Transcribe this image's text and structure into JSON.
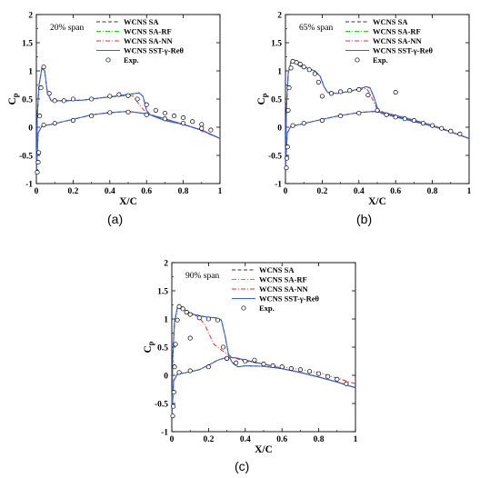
{
  "captions": [
    "(a)",
    "(b)",
    "(c)"
  ],
  "legend": {
    "entries": [
      {
        "label": "WCNS SA",
        "color": "#333333",
        "dash": "4,2.5"
      },
      {
        "label": "WCNS SA-RF",
        "color": "#2ecc2e",
        "dash": "5,2,1,2"
      },
      {
        "label": "WCNS SA-NN",
        "color": "#e03030",
        "dash": "5,2,1,2"
      },
      {
        "label": "WCNS SST-γ-Reθ",
        "color": "#3a5fe0",
        "dash": ""
      }
    ],
    "exp_label": "Exp."
  },
  "chart_data": [
    {
      "type": "line",
      "annotation": "20% span",
      "xlabel": "X/C",
      "ylabel": "Cp",
      "xlim": [
        0,
        1
      ],
      "ylim": [
        -1,
        2
      ],
      "xticks": [
        "0",
        "0.2",
        "0.4",
        "0.6",
        "0.8",
        "1"
      ],
      "yticks": [
        "-1",
        "-0.5",
        "0",
        "0.5",
        "1",
        "1.5",
        "2"
      ],
      "curves": {
        "upper": [
          [
            0,
            -0.8
          ],
          [
            0.005,
            0.2
          ],
          [
            0.015,
            0.75
          ],
          [
            0.03,
            1.05
          ],
          [
            0.045,
            1.0
          ],
          [
            0.06,
            0.62
          ],
          [
            0.08,
            0.47
          ],
          [
            0.15,
            0.47
          ],
          [
            0.25,
            0.48
          ],
          [
            0.35,
            0.52
          ],
          [
            0.45,
            0.56
          ],
          [
            0.52,
            0.59
          ],
          [
            0.56,
            0.61
          ],
          [
            0.58,
            0.55
          ],
          [
            0.6,
            0.3
          ],
          [
            0.62,
            0.22
          ],
          [
            0.7,
            0.12
          ],
          [
            0.8,
            0.05
          ],
          [
            0.9,
            -0.05
          ],
          [
            1.0,
            -0.2
          ]
        ],
        "lower": [
          [
            0,
            -0.8
          ],
          [
            0.01,
            -0.1
          ],
          [
            0.03,
            0.02
          ],
          [
            0.08,
            0.05
          ],
          [
            0.2,
            0.14
          ],
          [
            0.3,
            0.22
          ],
          [
            0.4,
            0.26
          ],
          [
            0.5,
            0.28
          ],
          [
            0.6,
            0.24
          ],
          [
            0.7,
            0.15
          ],
          [
            0.8,
            0.05
          ],
          [
            0.9,
            -0.05
          ],
          [
            1.0,
            -0.2
          ]
        ],
        "nn_upper": [
          [
            0,
            -0.8
          ],
          [
            0.005,
            0.2
          ],
          [
            0.015,
            0.75
          ],
          [
            0.03,
            1.05
          ],
          [
            0.045,
            1.0
          ],
          [
            0.06,
            0.62
          ],
          [
            0.08,
            0.47
          ],
          [
            0.15,
            0.47
          ],
          [
            0.25,
            0.48
          ],
          [
            0.35,
            0.52
          ],
          [
            0.45,
            0.55
          ],
          [
            0.5,
            0.57
          ],
          [
            0.53,
            0.55
          ],
          [
            0.56,
            0.4
          ],
          [
            0.6,
            0.25
          ],
          [
            0.65,
            0.18
          ],
          [
            0.75,
            0.1
          ],
          [
            0.85,
            0.0
          ],
          [
            1.0,
            -0.2
          ]
        ]
      },
      "exp": [
        [
          0.005,
          -0.8
        ],
        [
          0.01,
          -0.62
        ],
        [
          0.013,
          -0.45
        ],
        [
          0.018,
          0.2
        ],
        [
          0.025,
          0.7
        ],
        [
          0.04,
          1.07
        ],
        [
          0.07,
          0.6
        ],
        [
          0.1,
          0.47
        ],
        [
          0.15,
          0.47
        ],
        [
          0.2,
          0.5
        ],
        [
          0.3,
          0.5
        ],
        [
          0.4,
          0.55
        ],
        [
          0.45,
          0.58
        ],
        [
          0.5,
          0.56
        ],
        [
          0.55,
          0.5
        ],
        [
          0.6,
          0.4
        ],
        [
          0.65,
          0.3
        ],
        [
          0.7,
          0.25
        ],
        [
          0.75,
          0.2
        ],
        [
          0.8,
          0.17
        ],
        [
          0.85,
          0.1
        ],
        [
          0.9,
          0.05
        ],
        [
          0.95,
          -0.05
        ],
        [
          0.04,
          0.04
        ],
        [
          0.1,
          0.07
        ],
        [
          0.2,
          0.12
        ],
        [
          0.3,
          0.2
        ],
        [
          0.4,
          0.26
        ],
        [
          0.5,
          0.27
        ],
        [
          0.6,
          0.22
        ],
        [
          0.7,
          0.15
        ],
        [
          0.8,
          0.07
        ],
        [
          0.9,
          -0.02
        ]
      ]
    },
    {
      "type": "line",
      "annotation": "65% span",
      "xlabel": "X/C",
      "ylabel": "Cp",
      "xlim": [
        0,
        1
      ],
      "ylim": [
        -1,
        2
      ],
      "xticks": [
        "0",
        "0.2",
        "0.4",
        "0.6",
        "0.8",
        "1"
      ],
      "yticks": [
        "-1",
        "-0.5",
        "0",
        "0.5",
        "1",
        "1.5",
        "2"
      ],
      "curves": {
        "upper": [
          [
            0,
            -0.75
          ],
          [
            0.005,
            0.3
          ],
          [
            0.015,
            0.95
          ],
          [
            0.03,
            1.17
          ],
          [
            0.05,
            1.15
          ],
          [
            0.08,
            1.08
          ],
          [
            0.12,
            1.05
          ],
          [
            0.16,
            1.0
          ],
          [
            0.19,
            0.9
          ],
          [
            0.21,
            0.72
          ],
          [
            0.23,
            0.62
          ],
          [
            0.28,
            0.6
          ],
          [
            0.34,
            0.63
          ],
          [
            0.4,
            0.68
          ],
          [
            0.44,
            0.72
          ],
          [
            0.46,
            0.7
          ],
          [
            0.48,
            0.55
          ],
          [
            0.5,
            0.35
          ],
          [
            0.52,
            0.25
          ],
          [
            0.6,
            0.18
          ],
          [
            0.7,
            0.1
          ],
          [
            0.8,
            0.02
          ],
          [
            0.9,
            -0.08
          ],
          [
            1.0,
            -0.2
          ]
        ],
        "lower": [
          [
            0,
            -0.75
          ],
          [
            0.01,
            -0.1
          ],
          [
            0.03,
            0.02
          ],
          [
            0.08,
            0.05
          ],
          [
            0.2,
            0.14
          ],
          [
            0.3,
            0.21
          ],
          [
            0.4,
            0.26
          ],
          [
            0.48,
            0.28
          ],
          [
            0.55,
            0.25
          ],
          [
            0.65,
            0.17
          ],
          [
            0.75,
            0.08
          ],
          [
            0.85,
            -0.02
          ],
          [
            1.0,
            -0.2
          ]
        ],
        "nn_upper": [
          [
            0,
            -0.75
          ],
          [
            0.005,
            0.3
          ],
          [
            0.015,
            0.95
          ],
          [
            0.03,
            1.17
          ],
          [
            0.05,
            1.15
          ],
          [
            0.08,
            1.08
          ],
          [
            0.12,
            1.05
          ],
          [
            0.16,
            1.0
          ],
          [
            0.19,
            0.9
          ],
          [
            0.21,
            0.72
          ],
          [
            0.23,
            0.62
          ],
          [
            0.28,
            0.6
          ],
          [
            0.34,
            0.63
          ],
          [
            0.4,
            0.67
          ],
          [
            0.44,
            0.69
          ],
          [
            0.46,
            0.6
          ],
          [
            0.48,
            0.45
          ],
          [
            0.5,
            0.32
          ],
          [
            0.55,
            0.24
          ],
          [
            0.65,
            0.15
          ],
          [
            0.75,
            0.07
          ],
          [
            0.85,
            -0.03
          ],
          [
            1.0,
            -0.2
          ]
        ]
      },
      "exp": [
        [
          0.005,
          -0.72
        ],
        [
          0.008,
          -0.55
        ],
        [
          0.011,
          -0.35
        ],
        [
          0.015,
          0.3
        ],
        [
          0.02,
          0.7
        ],
        [
          0.03,
          1.05
        ],
        [
          0.04,
          1.17
        ],
        [
          0.06,
          1.15
        ],
        [
          0.08,
          1.12
        ],
        [
          0.1,
          1.07
        ],
        [
          0.13,
          1.02
        ],
        [
          0.16,
          0.95
        ],
        [
          0.18,
          0.8
        ],
        [
          0.2,
          0.55
        ],
        [
          0.25,
          0.6
        ],
        [
          0.3,
          0.63
        ],
        [
          0.35,
          0.65
        ],
        [
          0.4,
          0.67
        ],
        [
          0.45,
          0.57
        ],
        [
          0.5,
          0.3
        ],
        [
          0.55,
          0.22
        ],
        [
          0.6,
          0.18
        ],
        [
          0.65,
          0.15
        ],
        [
          0.7,
          0.12
        ],
        [
          0.75,
          0.07
        ],
        [
          0.8,
          0.03
        ],
        [
          0.85,
          -0.02
        ],
        [
          0.9,
          -0.07
        ],
        [
          0.95,
          -0.12
        ],
        [
          0.6,
          0.62
        ],
        [
          0.04,
          0.03
        ],
        [
          0.1,
          0.07
        ],
        [
          0.2,
          0.12
        ],
        [
          0.3,
          0.2
        ],
        [
          0.4,
          0.25
        ]
      ]
    },
    {
      "type": "line",
      "annotation": "90% span",
      "xlabel": "X/C",
      "ylabel": "Cp",
      "xlim": [
        0,
        1
      ],
      "ylim": [
        -1,
        2
      ],
      "xticks": [
        "0",
        "0.2",
        "0.4",
        "0.6",
        "0.8",
        "1"
      ],
      "yticks": [
        "-1",
        "-0.5",
        "0",
        "0.5",
        "1",
        "1.5",
        "2"
      ],
      "curves": {
        "upper": [
          [
            0,
            -0.75
          ],
          [
            0.005,
            0.3
          ],
          [
            0.015,
            0.95
          ],
          [
            0.03,
            1.2
          ],
          [
            0.05,
            1.18
          ],
          [
            0.08,
            1.13
          ],
          [
            0.12,
            1.08
          ],
          [
            0.16,
            1.05
          ],
          [
            0.2,
            1.03
          ],
          [
            0.24,
            1.02
          ],
          [
            0.27,
            0.98
          ],
          [
            0.29,
            0.7
          ],
          [
            0.31,
            0.35
          ],
          [
            0.33,
            0.22
          ],
          [
            0.36,
            0.15
          ],
          [
            0.4,
            0.17
          ],
          [
            0.5,
            0.16
          ],
          [
            0.6,
            0.12
          ],
          [
            0.7,
            0.05
          ],
          [
            0.8,
            -0.03
          ],
          [
            0.9,
            -0.12
          ],
          [
            1.0,
            -0.22
          ]
        ],
        "lower": [
          [
            0,
            -0.75
          ],
          [
            0.01,
            -0.1
          ],
          [
            0.03,
            0.02
          ],
          [
            0.08,
            0.05
          ],
          [
            0.15,
            0.1
          ],
          [
            0.2,
            0.18
          ],
          [
            0.25,
            0.27
          ],
          [
            0.3,
            0.32
          ],
          [
            0.35,
            0.31
          ],
          [
            0.4,
            0.27
          ],
          [
            0.5,
            0.2
          ],
          [
            0.6,
            0.12
          ],
          [
            0.7,
            0.05
          ],
          [
            0.8,
            -0.03
          ],
          [
            0.9,
            -0.12
          ],
          [
            1.0,
            -0.22
          ]
        ],
        "nn_upper": [
          [
            0,
            -0.75
          ],
          [
            0.005,
            0.3
          ],
          [
            0.015,
            0.95
          ],
          [
            0.03,
            1.2
          ],
          [
            0.05,
            1.18
          ],
          [
            0.08,
            1.13
          ],
          [
            0.12,
            1.08
          ],
          [
            0.15,
            1.02
          ],
          [
            0.18,
            0.9
          ],
          [
            0.2,
            0.75
          ],
          [
            0.23,
            0.55
          ],
          [
            0.27,
            0.45
          ],
          [
            0.3,
            0.38
          ],
          [
            0.33,
            0.32
          ],
          [
            0.4,
            0.25
          ],
          [
            0.5,
            0.2
          ],
          [
            0.6,
            0.15
          ],
          [
            0.7,
            0.1
          ],
          [
            0.8,
            0.05
          ],
          [
            0.9,
            -0.05
          ],
          [
            1.0,
            -0.15
          ]
        ]
      },
      "exp": [
        [
          0.005,
          -0.72
        ],
        [
          0.008,
          -0.55
        ],
        [
          0.011,
          -0.3
        ],
        [
          0.015,
          0.15
        ],
        [
          0.02,
          0.55
        ],
        [
          0.03,
          0.98
        ],
        [
          0.04,
          1.22
        ],
        [
          0.06,
          1.18
        ],
        [
          0.08,
          1.12
        ],
        [
          0.1,
          1.08
        ],
        [
          0.15,
          1.02
        ],
        [
          0.2,
          1.0
        ],
        [
          0.25,
          0.98
        ],
        [
          0.28,
          0.5
        ],
        [
          0.3,
          0.3
        ],
        [
          0.35,
          0.22
        ],
        [
          0.4,
          0.25
        ],
        [
          0.45,
          0.27
        ],
        [
          0.5,
          0.2
        ],
        [
          0.55,
          0.17
        ],
        [
          0.6,
          0.15
        ],
        [
          0.65,
          0.12
        ],
        [
          0.7,
          0.1
        ],
        [
          0.75,
          0.07
        ],
        [
          0.8,
          0.03
        ],
        [
          0.85,
          -0.02
        ],
        [
          0.9,
          -0.07
        ],
        [
          0.95,
          -0.15
        ],
        [
          0.1,
          0.66
        ],
        [
          0.04,
          0.05
        ],
        [
          0.1,
          0.08
        ],
        [
          0.2,
          0.15
        ],
        [
          0.3,
          0.3
        ]
      ]
    }
  ]
}
